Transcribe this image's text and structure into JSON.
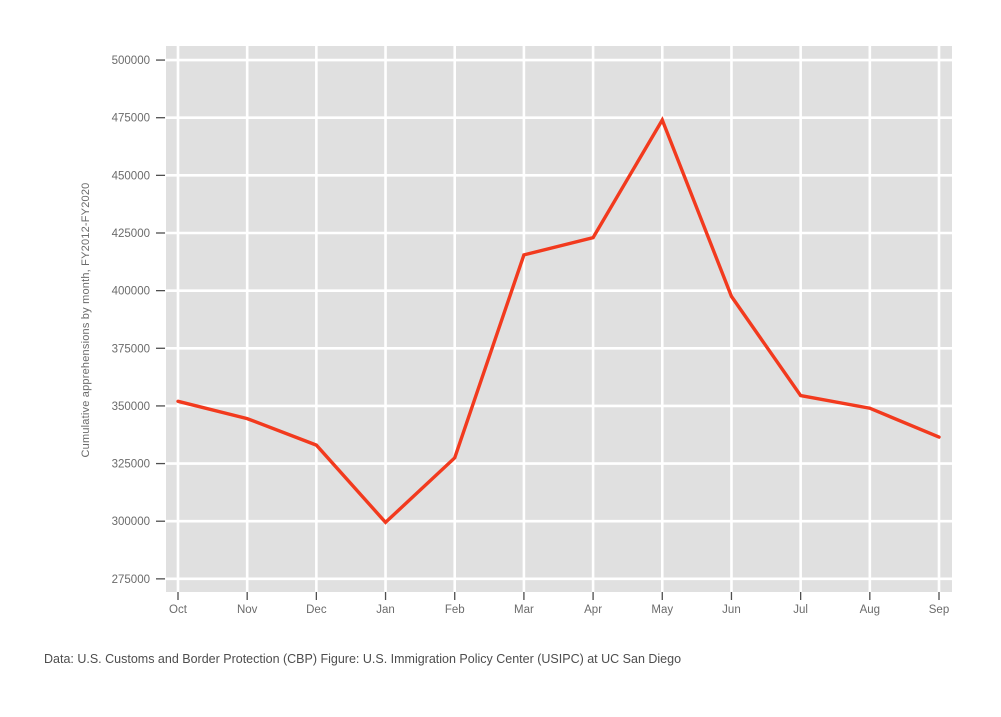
{
  "caption": "Data: U.S. Customs and Border Protection (CBP) Figure: U.S. Immigration Policy Center (USIPC) at UC San Diego",
  "chart_data": {
    "type": "line",
    "title": "",
    "xlabel": "",
    "ylabel": "Cumulative apprehensions by month, FY2012-FY2020",
    "categories": [
      "Oct",
      "Nov",
      "Dec",
      "Jan",
      "Feb",
      "Mar",
      "Apr",
      "May",
      "Jun",
      "Jul",
      "Aug",
      "Sep"
    ],
    "values": [
      352000,
      344500,
      333000,
      299500,
      327500,
      415500,
      423000,
      474000,
      397500,
      354500,
      349000,
      336500
    ],
    "yticks": [
      275000,
      300000,
      325000,
      350000,
      375000,
      400000,
      425000,
      450000,
      475000,
      500000
    ],
    "ylim": [
      269300,
      506100
    ],
    "grid": "major-only, white gridlines on gray panel",
    "legend": "none",
    "colors": {
      "line": "#f23a1e",
      "panel": "#e0e0e0",
      "gridline": "#ffffff",
      "tick_mark": "#4f4f4f",
      "tick_label": "#6b6b6b",
      "axis_title": "#6b6b6b",
      "caption": "#4d4d4d",
      "background": "#ffffff"
    }
  }
}
